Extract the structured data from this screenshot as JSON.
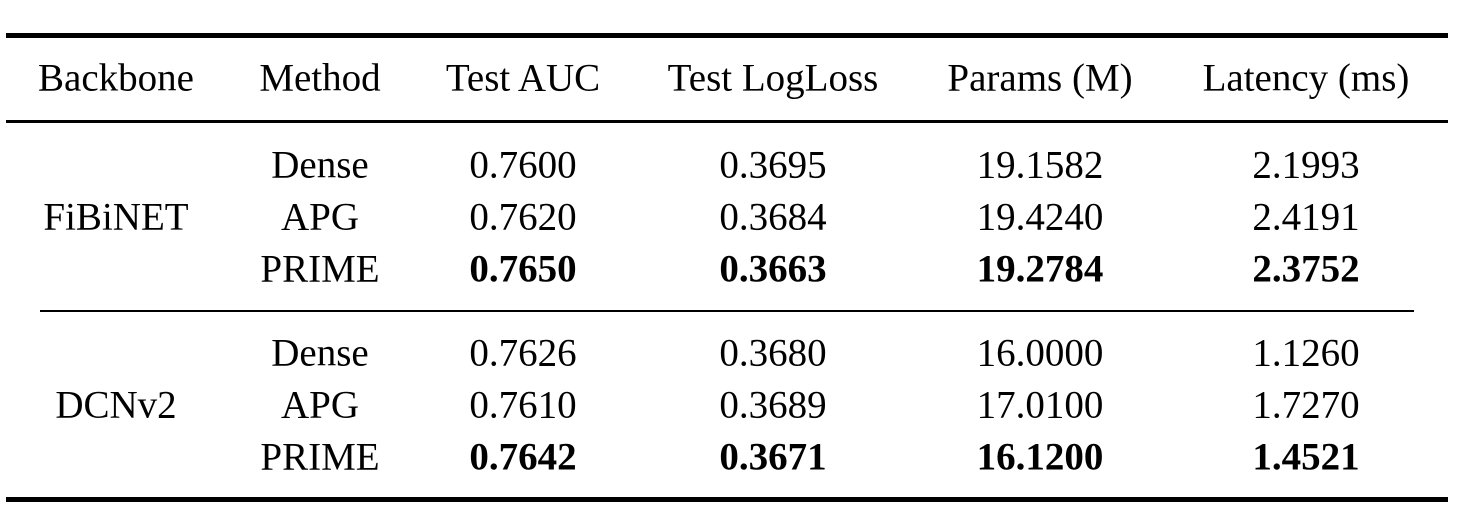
{
  "table": {
    "headers": [
      "Backbone",
      "Method",
      "Test AUC",
      "Test LogLoss",
      "Params (M)",
      "Latency (ms)"
    ],
    "groups": [
      {
        "backbone": "FiBiNET",
        "rows": [
          {
            "method": "Dense",
            "auc": "0.7600",
            "logloss": "0.3695",
            "params": "19.1582",
            "latency": "2.1993",
            "bold": false
          },
          {
            "method": "APG",
            "auc": "0.7620",
            "logloss": "0.3684",
            "params": "19.4240",
            "latency": "2.4191",
            "bold": false
          },
          {
            "method": "PRIME",
            "auc": "0.7650",
            "logloss": "0.3663",
            "params": "19.2784",
            "latency": "2.3752",
            "bold": true
          }
        ]
      },
      {
        "backbone": "DCNv2",
        "rows": [
          {
            "method": "Dense",
            "auc": "0.7626",
            "logloss": "0.3680",
            "params": "16.0000",
            "latency": "1.1260",
            "bold": false
          },
          {
            "method": "APG",
            "auc": "0.7610",
            "logloss": "0.3689",
            "params": "17.0100",
            "latency": "1.7270",
            "bold": false
          },
          {
            "method": "PRIME",
            "auc": "0.7642",
            "logloss": "0.3671",
            "params": "16.1200",
            "latency": "1.4521",
            "bold": true
          }
        ]
      }
    ]
  }
}
